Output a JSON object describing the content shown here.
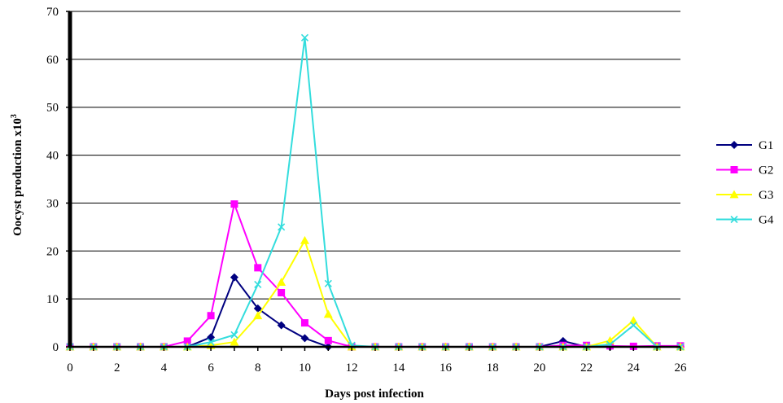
{
  "chart_data": {
    "type": "line",
    "title": "",
    "xlabel": "Days post infection",
    "ylabel": "Oocyst production x10",
    "ylabel_superscript": "3",
    "xlim": [
      0,
      26
    ],
    "ylim": [
      0,
      70
    ],
    "x_ticks": [
      "0",
      "2",
      "4",
      "6",
      "8",
      "10",
      "12",
      "14",
      "16",
      "18",
      "20",
      "22",
      "24",
      "26"
    ],
    "y_ticks": [
      "0",
      "10",
      "20",
      "30",
      "40",
      "50",
      "60",
      "70"
    ],
    "grid": "horizontal",
    "legend_position": "right",
    "x": [
      0,
      1,
      2,
      3,
      4,
      5,
      6,
      7,
      8,
      9,
      10,
      11,
      12,
      13,
      14,
      15,
      16,
      17,
      18,
      19,
      20,
      21,
      22,
      23,
      24,
      25,
      26
    ],
    "series": [
      {
        "name": "G1",
        "color": "#000080",
        "marker": "diamond",
        "values": [
          0,
          0,
          0,
          0,
          0,
          0,
          2,
          14.5,
          8,
          4.5,
          1.8,
          0,
          0,
          0,
          0,
          0,
          0,
          0,
          0,
          0,
          0,
          1.2,
          0,
          0,
          0,
          0,
          0
        ]
      },
      {
        "name": "G2",
        "color": "#ff00ff",
        "marker": "square",
        "values": [
          0,
          0,
          0,
          0,
          0,
          1.2,
          6.5,
          29.8,
          16.5,
          11.3,
          5,
          1.3,
          0,
          0,
          0,
          0,
          0,
          0,
          0,
          0,
          0,
          0.3,
          0.3,
          0.2,
          0.1,
          0.2,
          0.2
        ]
      },
      {
        "name": "G3",
        "color": "#ffff00",
        "marker": "triangle",
        "values": [
          0,
          0,
          0,
          0,
          0,
          0,
          0.3,
          1,
          6.5,
          13.5,
          22.2,
          6.8,
          0,
          0,
          0,
          0,
          0,
          0,
          0,
          0,
          0,
          0,
          0,
          1.3,
          5.5,
          0,
          0
        ]
      },
      {
        "name": "G4",
        "color": "#33dddd",
        "marker": "x",
        "values": [
          0,
          0,
          0,
          0,
          0,
          0,
          1,
          2.5,
          13,
          25,
          64.5,
          13.2,
          0.3,
          0,
          0,
          0,
          0,
          0,
          0,
          0,
          0,
          0,
          0,
          0.5,
          4.5,
          0,
          0
        ]
      }
    ]
  }
}
